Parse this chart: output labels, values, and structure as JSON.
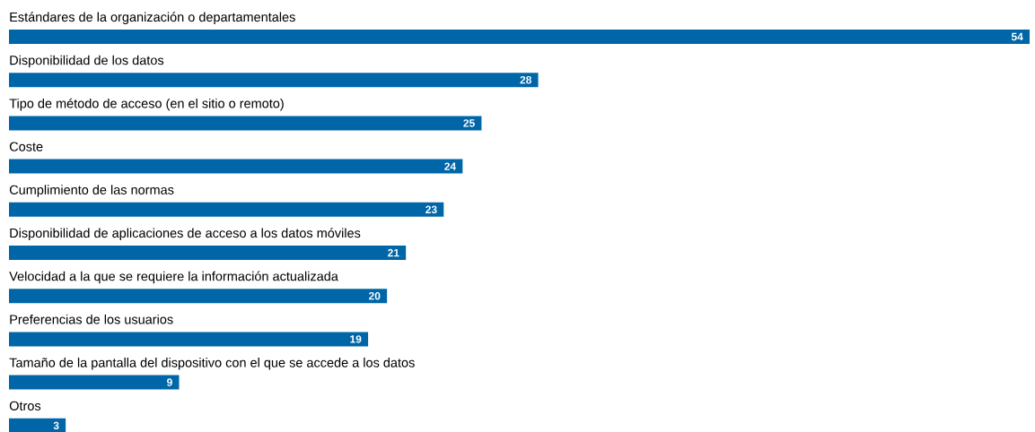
{
  "chart_data": {
    "type": "bar",
    "orientation": "horizontal",
    "data_labels": true,
    "color": "#0066a8",
    "categories": [
      "Estándares de la organización o departamentales",
      "Disponibilidad de los datos",
      "Tipo de método de acceso (en el sitio o remoto)",
      "Coste",
      "Cumplimiento de las normas",
      "Disponibilidad de aplicaciones de acceso a los datos móviles",
      "Velocidad a la que se requiere la información actualizada",
      "Preferencias de los usuarios",
      "Tamaño de la pantalla del dispositivo con el que se accede a los datos",
      "Otros"
    ],
    "values": [
      54,
      28,
      25,
      24,
      23,
      21,
      20,
      19,
      9,
      3
    ]
  }
}
